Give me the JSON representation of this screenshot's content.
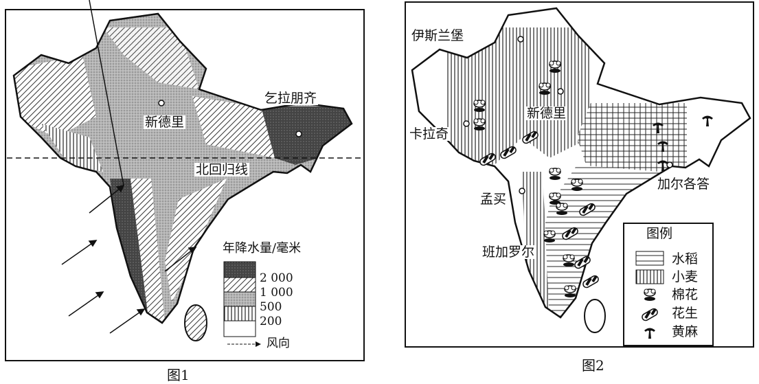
{
  "figure1": {
    "caption": "图1",
    "cities": {
      "new_delhi": "新德里",
      "cherrapunji": "乞拉朋齐"
    },
    "tropic_label": "北回归线",
    "legend": {
      "title": "年降水量/毫米",
      "classes": [
        "2 000",
        "1 000",
        "500",
        "200"
      ],
      "wind_label": "风向"
    },
    "wind_direction": "southwest"
  },
  "figure2": {
    "caption": "图2",
    "cities": {
      "islamabad": "伊斯兰堡",
      "karachi": "卡拉奇",
      "new_delhi": "新德里",
      "mumbai": "孟买",
      "kolkata": "加尔各答",
      "bangalore": "班加罗尔"
    },
    "legend": {
      "title": "图例",
      "items": [
        {
          "label": "水稻",
          "icon": "horizontal-lines-pattern"
        },
        {
          "label": "小麦",
          "icon": "vertical-lines-pattern"
        },
        {
          "label": "棉花",
          "icon": "cotton-icon"
        },
        {
          "label": "花生",
          "icon": "peanut-icon"
        },
        {
          "label": "黄麻",
          "icon": "jute-icon"
        }
      ]
    }
  }
}
